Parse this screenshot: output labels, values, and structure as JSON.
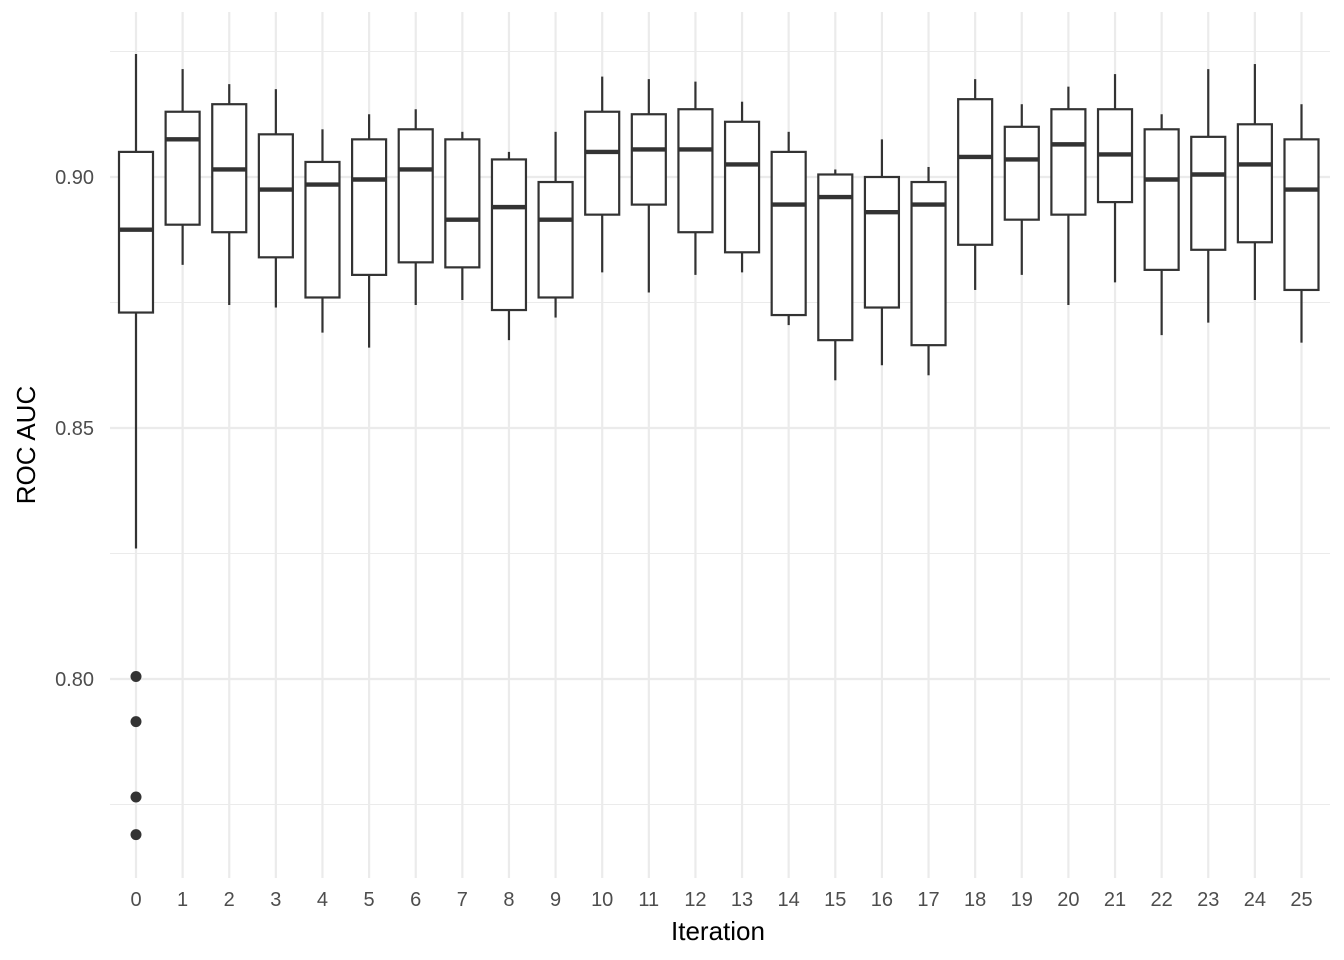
{
  "chart_data": {
    "type": "boxplot",
    "xlabel": "Iteration",
    "ylabel": "ROC AUC",
    "categories": [
      "0",
      "1",
      "2",
      "3",
      "4",
      "5",
      "6",
      "7",
      "8",
      "9",
      "10",
      "11",
      "12",
      "13",
      "14",
      "15",
      "16",
      "17",
      "18",
      "19",
      "20",
      "21",
      "22",
      "23",
      "24",
      "25"
    ],
    "ylim": [
      0.762,
      0.925
    ],
    "yticks": [
      0.8,
      0.85,
      0.9
    ],
    "ytick_labels": [
      "0.80",
      "0.85",
      "0.90"
    ],
    "grid": true,
    "boxes": [
      {
        "x": "0",
        "whisker_low": 0.826,
        "q1": 0.873,
        "median": 0.8895,
        "q3": 0.905,
        "whisker_high": 0.9245,
        "outliers": [
          0.8005,
          0.7915,
          0.7765,
          0.769
        ]
      },
      {
        "x": "1",
        "whisker_low": 0.8825,
        "q1": 0.8905,
        "median": 0.9075,
        "q3": 0.913,
        "whisker_high": 0.9215,
        "outliers": []
      },
      {
        "x": "2",
        "whisker_low": 0.8745,
        "q1": 0.889,
        "median": 0.9015,
        "q3": 0.9145,
        "whisker_high": 0.9185,
        "outliers": []
      },
      {
        "x": "3",
        "whisker_low": 0.874,
        "q1": 0.884,
        "median": 0.8975,
        "q3": 0.9085,
        "whisker_high": 0.9175,
        "outliers": []
      },
      {
        "x": "4",
        "whisker_low": 0.869,
        "q1": 0.876,
        "median": 0.8985,
        "q3": 0.903,
        "whisker_high": 0.9095,
        "outliers": []
      },
      {
        "x": "5",
        "whisker_low": 0.866,
        "q1": 0.8805,
        "median": 0.8995,
        "q3": 0.9075,
        "whisker_high": 0.9125,
        "outliers": []
      },
      {
        "x": "6",
        "whisker_low": 0.8745,
        "q1": 0.883,
        "median": 0.9015,
        "q3": 0.9095,
        "whisker_high": 0.9135,
        "outliers": []
      },
      {
        "x": "7",
        "whisker_low": 0.8755,
        "q1": 0.882,
        "median": 0.8915,
        "q3": 0.9075,
        "whisker_high": 0.909,
        "outliers": []
      },
      {
        "x": "8",
        "whisker_low": 0.8675,
        "q1": 0.8735,
        "median": 0.894,
        "q3": 0.9035,
        "whisker_high": 0.905,
        "outliers": []
      },
      {
        "x": "9",
        "whisker_low": 0.872,
        "q1": 0.876,
        "median": 0.8915,
        "q3": 0.899,
        "whisker_high": 0.909,
        "outliers": []
      },
      {
        "x": "10",
        "whisker_low": 0.881,
        "q1": 0.8925,
        "median": 0.905,
        "q3": 0.913,
        "whisker_high": 0.92,
        "outliers": []
      },
      {
        "x": "11",
        "whisker_low": 0.877,
        "q1": 0.8945,
        "median": 0.9055,
        "q3": 0.9125,
        "whisker_high": 0.9195,
        "outliers": []
      },
      {
        "x": "12",
        "whisker_low": 0.8805,
        "q1": 0.889,
        "median": 0.9055,
        "q3": 0.9135,
        "whisker_high": 0.919,
        "outliers": []
      },
      {
        "x": "13",
        "whisker_low": 0.881,
        "q1": 0.885,
        "median": 0.9025,
        "q3": 0.911,
        "whisker_high": 0.915,
        "outliers": []
      },
      {
        "x": "14",
        "whisker_low": 0.8705,
        "q1": 0.8725,
        "median": 0.8945,
        "q3": 0.905,
        "whisker_high": 0.909,
        "outliers": []
      },
      {
        "x": "15",
        "whisker_low": 0.8595,
        "q1": 0.8675,
        "median": 0.896,
        "q3": 0.9005,
        "whisker_high": 0.9015,
        "outliers": []
      },
      {
        "x": "16",
        "whisker_low": 0.8625,
        "q1": 0.874,
        "median": 0.893,
        "q3": 0.9,
        "whisker_high": 0.9075,
        "outliers": []
      },
      {
        "x": "17",
        "whisker_low": 0.8605,
        "q1": 0.8665,
        "median": 0.8945,
        "q3": 0.899,
        "whisker_high": 0.902,
        "outliers": []
      },
      {
        "x": "18",
        "whisker_low": 0.8775,
        "q1": 0.8865,
        "median": 0.904,
        "q3": 0.9155,
        "whisker_high": 0.9195,
        "outliers": []
      },
      {
        "x": "19",
        "whisker_low": 0.8805,
        "q1": 0.8915,
        "median": 0.9035,
        "q3": 0.91,
        "whisker_high": 0.9145,
        "outliers": []
      },
      {
        "x": "20",
        "whisker_low": 0.8745,
        "q1": 0.8925,
        "median": 0.9065,
        "q3": 0.9135,
        "whisker_high": 0.918,
        "outliers": []
      },
      {
        "x": "21",
        "whisker_low": 0.879,
        "q1": 0.895,
        "median": 0.9045,
        "q3": 0.9135,
        "whisker_high": 0.9205,
        "outliers": []
      },
      {
        "x": "22",
        "whisker_low": 0.8685,
        "q1": 0.8815,
        "median": 0.8995,
        "q3": 0.9095,
        "whisker_high": 0.9125,
        "outliers": []
      },
      {
        "x": "23",
        "whisker_low": 0.871,
        "q1": 0.8855,
        "median": 0.9005,
        "q3": 0.908,
        "whisker_high": 0.9215,
        "outliers": []
      },
      {
        "x": "24",
        "whisker_low": 0.8755,
        "q1": 0.887,
        "median": 0.9025,
        "q3": 0.9105,
        "whisker_high": 0.9225,
        "outliers": []
      },
      {
        "x": "25",
        "whisker_low": 0.867,
        "q1": 0.8775,
        "median": 0.8975,
        "q3": 0.9075,
        "whisker_high": 0.9145,
        "outliers": []
      }
    ]
  }
}
